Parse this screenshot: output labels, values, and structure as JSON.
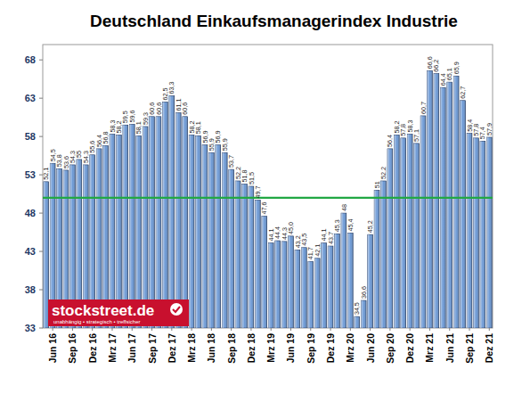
{
  "chart_data": {
    "type": "bar",
    "title": "Deutschland Einkaufsmanagerindex Industrie",
    "categories": [
      null,
      "Jun 16",
      null,
      null,
      "Sep 16",
      null,
      null,
      "Dez 16",
      null,
      null,
      "Mrz 17",
      null,
      null,
      "Jun 17",
      null,
      null,
      "Sep 17",
      null,
      null,
      "Dez 17",
      null,
      null,
      "Mrz 18",
      null,
      null,
      "Jun 18",
      null,
      null,
      "Sep 18",
      null,
      null,
      "Dez 18",
      null,
      null,
      "Mrz 19",
      null,
      null,
      "Jun 19",
      null,
      null,
      "Sep 19",
      null,
      null,
      "Dez 19",
      null,
      null,
      "Mrz 20",
      null,
      null,
      "Jun 20",
      null,
      null,
      "Sep 20",
      null,
      null,
      "Dez 20",
      null,
      null,
      "Mrz 21",
      null,
      null,
      "Jun 21",
      null,
      null,
      "Sep 21",
      null,
      null,
      "Dez 21"
    ],
    "values": [
      52.1,
      54.5,
      53.8,
      53.6,
      54.3,
      55.0,
      54.3,
      55.6,
      56.4,
      56.8,
      58.3,
      58.2,
      59.5,
      59.6,
      58.1,
      59.3,
      60.6,
      60.6,
      62.5,
      63.3,
      61.1,
      60.6,
      58.2,
      58.1,
      56.9,
      55.9,
      56.9,
      55.9,
      53.7,
      52.2,
      51.8,
      51.5,
      49.7,
      47.6,
      44.1,
      44.4,
      44.3,
      45.0,
      43.2,
      43.5,
      41.7,
      42.1,
      44.1,
      43.7,
      45.3,
      48.0,
      45.4,
      34.5,
      36.6,
      45.2,
      51.0,
      52.2,
      56.4,
      58.2,
      57.8,
      58.3,
      57.1,
      60.7,
      66.6,
      66.2,
      64.4,
      65.1,
      65.9,
      62.7,
      58.4,
      57.8,
      57.4,
      57.9
    ],
    "value_labels": [
      "52,1",
      "54,5",
      "53,8",
      "53,6",
      "54,3",
      "55",
      "54,3",
      "55,6",
      "56,4",
      "56,8",
      "58,3",
      "58,2",
      "59,5",
      "59,6",
      "58,1",
      "59,3",
      "60,6",
      "60,6",
      "62,5",
      "63,3",
      "61,1",
      "60,6",
      "58,2",
      "58,1",
      "56,9",
      "55,9",
      "56,9",
      "55,9",
      "53,7",
      "52,2",
      "51,8",
      "51,5",
      "49,7",
      "47,6",
      "44,1",
      "44,4",
      "44,3",
      "45,0",
      "43,2",
      "43,5",
      "41,7",
      "42,1",
      "44,1",
      "43,7",
      "45,3",
      "48",
      "45,4",
      "34,5",
      "36,6",
      "45,2",
      "51",
      "52,2",
      "56,4",
      "58,2",
      "57,8",
      "58,3",
      "57,1",
      "60,7",
      "66,6",
      "66,2",
      "64,4",
      "65,1",
      "65,9",
      "62,7",
      "58,4",
      "57,8",
      "57,4",
      "57,9"
    ],
    "color": "#6f9bd6",
    "ylim": [
      33,
      70
    ],
    "yticks": [
      33,
      38,
      43,
      48,
      53,
      58,
      63,
      68
    ],
    "grid": false,
    "data_labels": true,
    "reference_line": 50,
    "annotations": [
      "stockstreet.de",
      "unabhängig • strategisch • treffsicher"
    ]
  }
}
